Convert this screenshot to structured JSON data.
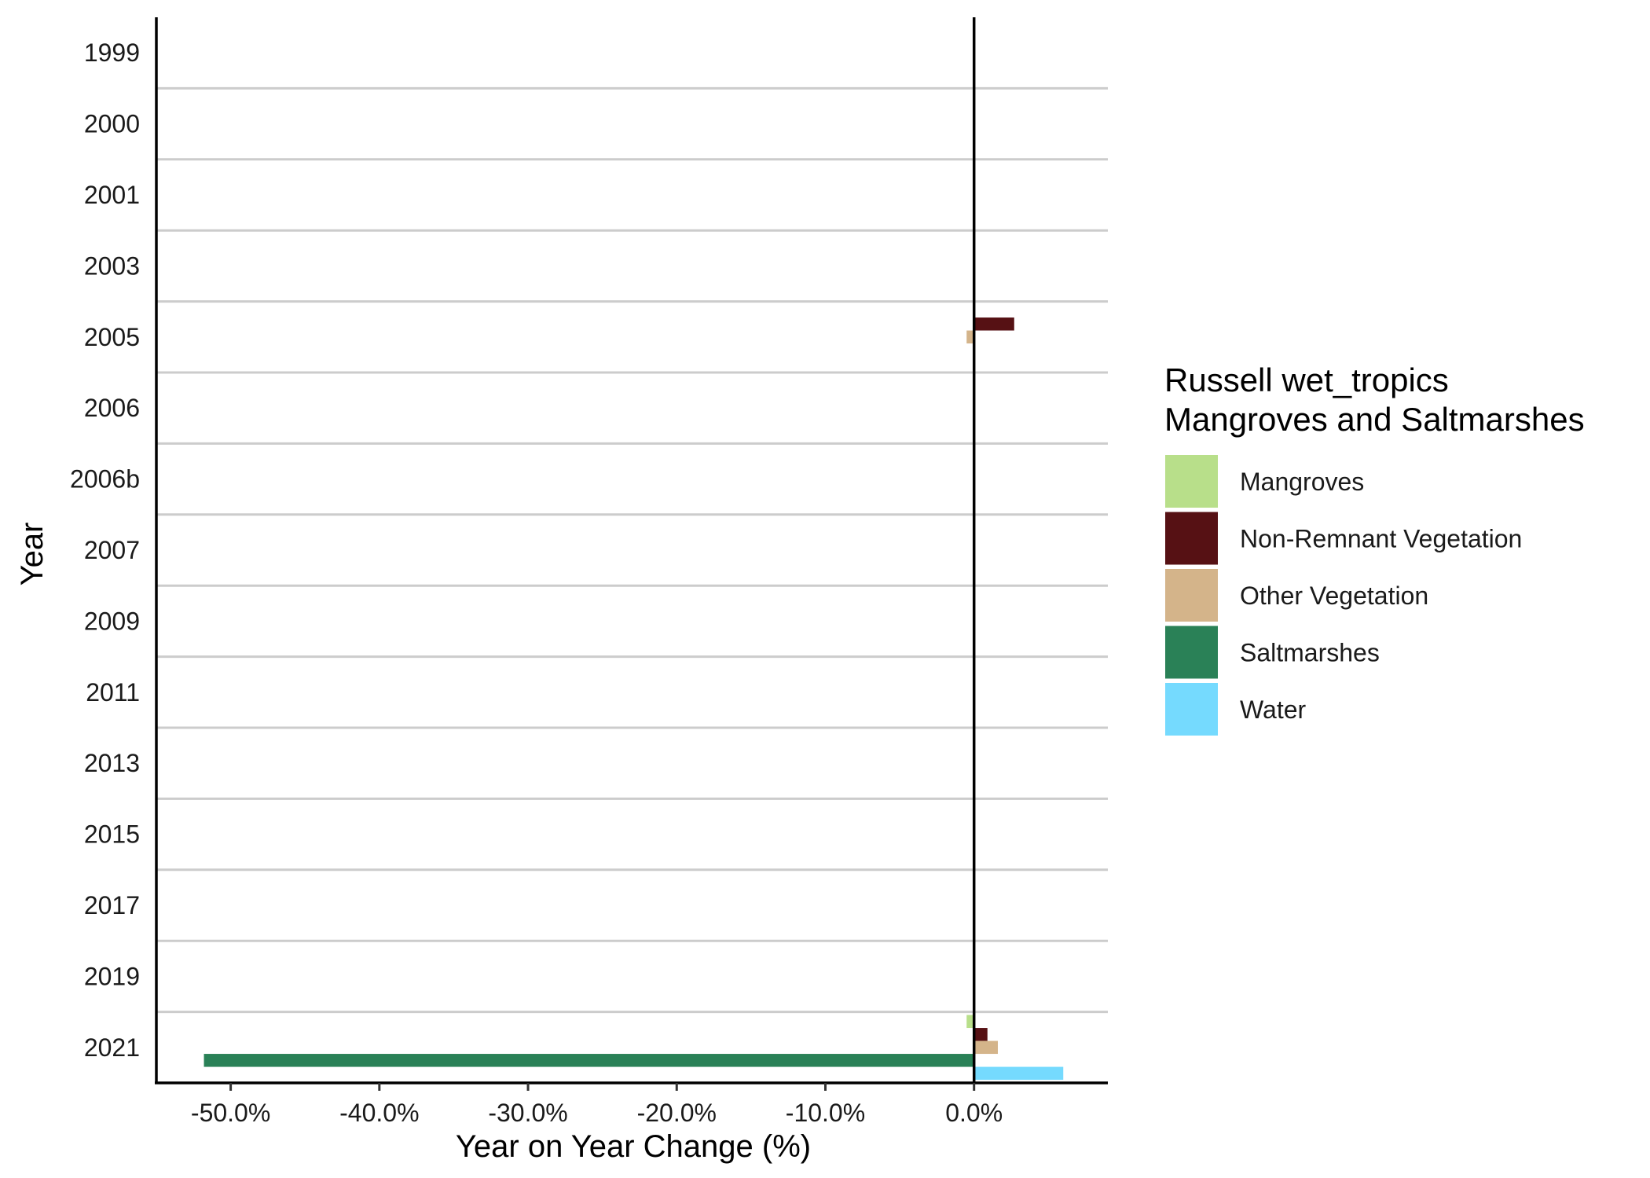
{
  "chart_data": {
    "type": "bar",
    "orientation": "horizontal",
    "categories": [
      "1999",
      "2000",
      "2001",
      "2003",
      "2005",
      "2006",
      "2006b",
      "2007",
      "2009",
      "2011",
      "2013",
      "2015",
      "2017",
      "2019",
      "2021"
    ],
    "xlabel": "Year on Year Change (%)",
    "ylabel": "Year",
    "xlim": [
      -55,
      9
    ],
    "x_ticks": [
      -50,
      -40,
      -30,
      -20,
      -10,
      0
    ],
    "x_tick_labels": [
      "-50.0%",
      "-40.0%",
      "-30.0%",
      "-20.0%",
      "-10.0%",
      "0.0%"
    ],
    "grid": "horizontal lines between years",
    "legend": {
      "title_lines": [
        "Russell wet_tropics",
        "Mangroves and Saltmarshes"
      ],
      "placement": "right"
    },
    "series": [
      {
        "name": "Mangroves",
        "color": "#b8df8a",
        "values": [
          0,
          0,
          0,
          0,
          0,
          0,
          0,
          0,
          0,
          0,
          0,
          0,
          0,
          0,
          -0.5
        ]
      },
      {
        "name": "Non-Remnant Vegetation",
        "color": "#561114",
        "values": [
          0,
          0,
          0,
          0,
          2.7,
          0,
          0,
          0,
          0,
          0,
          0,
          0,
          0,
          0,
          0.9
        ]
      },
      {
        "name": "Other Vegetation",
        "color": "#d4b48a",
        "values": [
          0,
          0,
          0,
          0,
          -0.5,
          0,
          0,
          0,
          0,
          0,
          0,
          0,
          0,
          0,
          1.6
        ]
      },
      {
        "name": "Saltmarshes",
        "color": "#2a8157",
        "values": [
          0,
          0,
          0,
          0,
          0,
          0,
          0,
          0,
          0,
          0,
          0,
          0,
          0,
          0,
          -51.8
        ]
      },
      {
        "name": "Water",
        "color": "#75dafe",
        "values": [
          0,
          0,
          0,
          0,
          0,
          0,
          0,
          0,
          0,
          0,
          0,
          0,
          0,
          0,
          6.0
        ]
      }
    ]
  }
}
